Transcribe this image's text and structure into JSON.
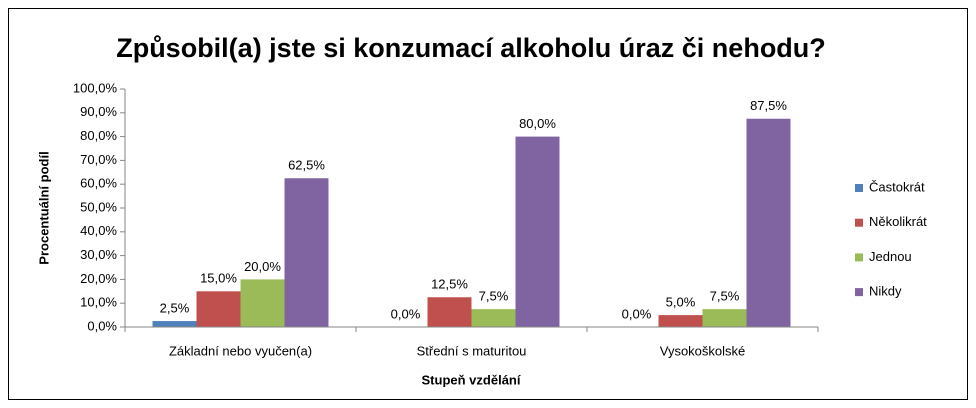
{
  "chart_data": {
    "type": "bar",
    "title": "Způsobil(a) jste si konzumací alkoholu úraz či nehodu?",
    "x_label": "Stupeň vzdělání",
    "y_label": "Procentuální podíl",
    "categories": [
      "Základní nebo vyučen(a)",
      "Střední s maturitou",
      "Vysokoškolské"
    ],
    "series": [
      {
        "name": "Častokrát",
        "color": "#4f81bd",
        "values": [
          2.5,
          0,
          0
        ],
        "value_labels": [
          "2,5%",
          "0,0%",
          "0,0%"
        ]
      },
      {
        "name": "Několikrát",
        "color": "#c0504d",
        "values": [
          15,
          12.5,
          5
        ],
        "value_labels": [
          "15,0%",
          "12,5%",
          "5,0%"
        ]
      },
      {
        "name": "Jednou",
        "color": "#9bbb59",
        "values": [
          20,
          7.5,
          7.5
        ],
        "value_labels": [
          "20,0%",
          "7,5%",
          "7,5%"
        ]
      },
      {
        "name": "Nikdy",
        "color": "#8064a2",
        "values": [
          62.5,
          80,
          87.5
        ],
        "value_labels": [
          "62,5%",
          "80,0%",
          "87,5%"
        ]
      }
    ],
    "ylim": [
      0,
      100
    ],
    "yticks": [
      {
        "value": 0,
        "label": "0,0%"
      },
      {
        "value": 10,
        "label": "10,0%"
      },
      {
        "value": 20,
        "label": "20,0%"
      },
      {
        "value": 30,
        "label": "30,0%"
      },
      {
        "value": 40,
        "label": "40,0%"
      },
      {
        "value": 50,
        "label": "50,0%"
      },
      {
        "value": 60,
        "label": "60,0%"
      },
      {
        "value": 70,
        "label": "70,0%"
      },
      {
        "value": 80,
        "label": "80,0%"
      },
      {
        "value": 90,
        "label": "90,0%"
      },
      {
        "value": 100,
        "label": "100,0%"
      }
    ],
    "grid": false,
    "legend": "right"
  }
}
